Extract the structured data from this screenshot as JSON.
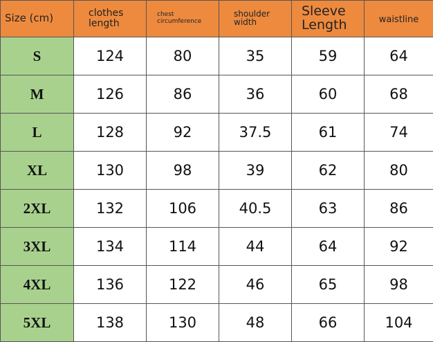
{
  "table": {
    "header": [
      "Size (cm)",
      "clothes length",
      "chest circumference",
      "shoulder width",
      "Sleeve Length",
      "waistline"
    ],
    "rows": [
      [
        "S",
        124,
        80,
        35,
        59,
        64
      ],
      [
        "M",
        126,
        86,
        36,
        60,
        68
      ],
      [
        "L",
        128,
        92,
        37.5,
        61,
        74
      ],
      [
        "XL",
        130,
        98,
        39,
        62,
        80
      ],
      [
        "2XL",
        132,
        106,
        40.5,
        63,
        86
      ],
      [
        "3XL",
        134,
        114,
        44,
        64,
        92
      ],
      [
        "4XL",
        136,
        122,
        46,
        65,
        98
      ],
      [
        "5XL",
        138,
        130,
        48,
        66,
        104
      ]
    ]
  }
}
